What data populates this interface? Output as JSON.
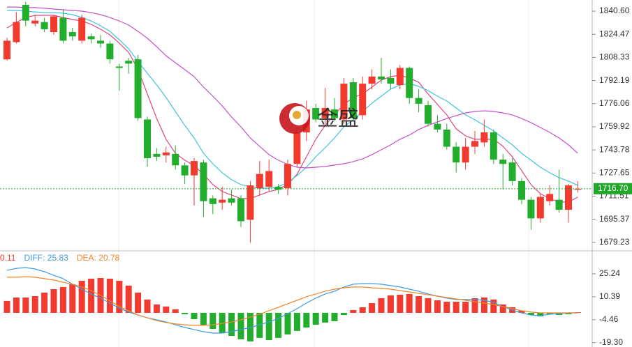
{
  "chart_data": [
    {
      "type": "candlestick",
      "watermark": "金盛",
      "up_color": "#f23a2f",
      "down_color": "#22ad2c",
      "ylim": [
        1674.3,
        1848.4
      ],
      "yticks": [
        {
          "value": 1840.6,
          "label": "1840.60"
        },
        1824.47,
        1808.33,
        1792.19,
        1776.06,
        1759.92,
        1743.78,
        1727.65,
        1711.51,
        1695.37,
        1679.23
      ],
      "current_price": {
        "value": 1716.7,
        "label": "1716.70"
      },
      "current_color": "#1fa82a",
      "open": [
        1807,
        1819,
        1845,
        1832,
        1833,
        1826,
        1836,
        1826,
        1820,
        1823,
        1820,
        1818,
        1802,
        1806,
        1807,
        1765,
        1741,
        1740,
        1741,
        1733,
        1726,
        1735,
        1710,
        1707,
        1710,
        1710,
        1695,
        1717,
        1718,
        1718,
        1717,
        1734,
        1756,
        1773,
        1766,
        1772,
        1765,
        1791,
        1768,
        1790,
        1795,
        1794,
        1789,
        1801,
        1780,
        1775,
        1762,
        1758,
        1746,
        1735,
        1746,
        1749,
        1756,
        1737,
        1735,
        1722,
        1709,
        1696,
        1708,
        1709,
        1702,
        1716
      ],
      "high": [
        1822,
        1840,
        1847,
        1838,
        1836,
        1838,
        1842,
        1829,
        1838,
        1825,
        1824,
        1820,
        1804,
        1808,
        1810,
        1767,
        1745,
        1746,
        1747,
        1735,
        1738,
        1737,
        1712,
        1718,
        1716,
        1712,
        1722,
        1736,
        1737,
        1720,
        1737,
        1760,
        1778,
        1776,
        1787,
        1780,
        1794,
        1794,
        1795,
        1800,
        1808,
        1800,
        1803,
        1802,
        1786,
        1778,
        1768,
        1762,
        1749,
        1752,
        1757,
        1765,
        1758,
        1741,
        1738,
        1724,
        1711,
        1713,
        1719,
        1730,
        1720,
        1722
      ],
      "low": [
        1806,
        1818,
        1830,
        1830,
        1826,
        1824,
        1818,
        1820,
        1818,
        1818,
        1815,
        1804,
        1785,
        1797,
        1764,
        1732,
        1736,
        1735,
        1730,
        1720,
        1705,
        1697,
        1699,
        1702,
        1705,
        1690,
        1679,
        1712,
        1715,
        1713,
        1712,
        1732,
        1750,
        1763,
        1762,
        1764,
        1762,
        1764,
        1765,
        1786,
        1790,
        1786,
        1786,
        1776,
        1770,
        1760,
        1756,
        1744,
        1728,
        1730,
        1741,
        1746,
        1734,
        1716,
        1719,
        1706,
        1688,
        1693,
        1705,
        1700,
        1693,
        1714
      ],
      "close": [
        1820,
        1833,
        1834,
        1834,
        1828,
        1837,
        1820,
        1823,
        1836,
        1821,
        1818,
        1807,
        1801,
        1804,
        1766,
        1738,
        1739,
        1742,
        1733,
        1726,
        1736,
        1708,
        1706,
        1709,
        1707,
        1694,
        1719,
        1727,
        1729,
        1716,
        1734,
        1756,
        1772,
        1765,
        1773,
        1766,
        1790,
        1766,
        1790,
        1795,
        1793,
        1790,
        1801,
        1780,
        1776,
        1762,
        1758,
        1746,
        1735,
        1746,
        1750,
        1756,
        1737,
        1734,
        1722,
        1709,
        1696,
        1711,
        1713,
        1702,
        1719,
        1716.7
      ],
      "series": [
        {
          "color": "#e2457c",
          "values": [
            1828.9,
            1832.8,
            1836.2,
            1837.7,
            1837.7,
            1837.7,
            1836.2,
            1834.8,
            1833.8,
            1831.4,
            1828.0,
            1824.1,
            1818.3,
            1811.9,
            1799.8,
            1782.8,
            1765.7,
            1751.2,
            1741.4,
            1736.6,
            1732.7,
            1726.8,
            1719.6,
            1714.7,
            1712.3,
            1709.8,
            1709.8,
            1712.3,
            1714.7,
            1716.2,
            1719.6,
            1726.8,
            1739.0,
            1751.2,
            1760.9,
            1768.2,
            1775.5,
            1780.3,
            1782.8,
            1787.6,
            1792.5,
            1794.9,
            1795.9,
            1793.9,
            1791.0,
            1782.8,
            1775.5,
            1768.2,
            1758.5,
            1753.6,
            1751.2,
            1751.2,
            1751.2,
            1746.3,
            1739.0,
            1729.3,
            1719.6,
            1713.2,
            1709.8,
            1707.4,
            1707.4,
            1710.8
          ]
        },
        {
          "color": "#3fc4de",
          "values": [
            1841.1,
            1841.1,
            1840.6,
            1840.1,
            1839.6,
            1839.6,
            1839.2,
            1838.2,
            1836.2,
            1833.8,
            1830.4,
            1826.5,
            1820.7,
            1814.4,
            1805.6,
            1797.3,
            1789.1,
            1780.3,
            1770.6,
            1760.9,
            1752.1,
            1741.4,
            1734.1,
            1727.8,
            1723.0,
            1719.6,
            1718.1,
            1717.1,
            1717.1,
            1718.1,
            1721.0,
            1725.9,
            1731.7,
            1739.0,
            1745.3,
            1752.1,
            1759.9,
            1764.8,
            1770.6,
            1776.4,
            1781.3,
            1786.2,
            1789.1,
            1790.1,
            1788.1,
            1785.2,
            1781.3,
            1777.9,
            1773.0,
            1768.2,
            1764.8,
            1760.9,
            1757.0,
            1752.1,
            1747.3,
            1741.4,
            1736.6,
            1731.7,
            1727.8,
            1724.4,
            1722.0,
            1719.1
          ]
        },
        {
          "color": "#c452c8",
          "values": [
            1843.5,
            1843.5,
            1843.1,
            1843.1,
            1842.6,
            1842.1,
            1841.6,
            1841.1,
            1840.6,
            1839.6,
            1838.2,
            1836.2,
            1833.8,
            1830.9,
            1826.5,
            1821.7,
            1815.8,
            1809.5,
            1804.6,
            1799.8,
            1794.9,
            1787.6,
            1781.3,
            1774.5,
            1766.7,
            1759.9,
            1752.1,
            1746.3,
            1740.5,
            1736.6,
            1733.7,
            1731.7,
            1731.2,
            1731.7,
            1732.2,
            1733.2,
            1734.1,
            1735.6,
            1737.5,
            1740.5,
            1743.9,
            1747.3,
            1751.2,
            1754.1,
            1758.0,
            1760.9,
            1763.3,
            1765.7,
            1767.7,
            1769.6,
            1770.6,
            1771.1,
            1770.6,
            1769.6,
            1768.2,
            1765.7,
            1762.8,
            1759.4,
            1756.0,
            1752.1,
            1747.3,
            1741.4
          ]
        }
      ]
    },
    {
      "type": "macd",
      "readout": [
        {
          "text": "0.11",
          "color": "#f23a2f"
        },
        {
          "text": "DIFF: 25.83",
          "color": "#3f9be0"
        },
        {
          "text": "DEA: 20.78",
          "color": "#f0862a"
        }
      ],
      "up_color": "#f23a2f",
      "down_color": "#22ad2c",
      "ylim": [
        -22.1,
        39.2
      ],
      "yticks": [
        25.24,
        10.39,
        -4.46,
        {
          "value": -19.3,
          "label": "-19.30"
        }
      ],
      "values": [
        7.7,
        9.9,
        9.9,
        10.8,
        13.1,
        15.3,
        16.7,
        18.5,
        20.7,
        22.1,
        22.5,
        22.1,
        20.7,
        17.6,
        13.1,
        8.6,
        5.4,
        4.1,
        2.3,
        -0.9,
        -4.1,
        -8.1,
        -10.4,
        -13.1,
        -14.9,
        -17.1,
        -18.5,
        -16.2,
        -17.6,
        -16.2,
        -14.0,
        -11.7,
        -9.5,
        -7.7,
        -6.3,
        -5.4,
        -1.4,
        1.8,
        3.6,
        6.3,
        9.5,
        11.3,
        11.7,
        12.2,
        10.8,
        9.5,
        8.1,
        7.2,
        7.2,
        7.2,
        9.5,
        9.9,
        8.6,
        5.4,
        3.6,
        1.4,
        -1.4,
        -2.3,
        -0.9,
        -1.4,
        -0.9,
        0.4
      ],
      "series": [
        {
          "color": "#3f9be0",
          "values": [
            27.5,
            28.8,
            29.3,
            28.4,
            26.6,
            24.3,
            22.1,
            18.5,
            15.3,
            12.2,
            9.5,
            6.3,
            3.2,
            0.5,
            -1.4,
            -3.2,
            -4.5,
            -5.9,
            -7.7,
            -9.5,
            -10.8,
            -12.2,
            -13.1,
            -13.1,
            -12.2,
            -10.8,
            -9.5,
            -7.7,
            -5.9,
            -3.6,
            -0.5,
            2.7,
            6.3,
            9.5,
            12.2,
            14.0,
            16.7,
            18.5,
            18.9,
            18.9,
            18.5,
            17.6,
            16.7,
            15.3,
            14.0,
            12.2,
            10.8,
            9.5,
            8.6,
            8.6,
            8.6,
            8.1,
            6.8,
            4.1,
            1.8,
            0,
            -1.4,
            -1.8,
            -0.9,
            -0.5,
            0,
            0
          ]
        },
        {
          "color": "#f0862a",
          "values": [
            23.0,
            23.0,
            23.4,
            23.0,
            22.1,
            21.2,
            19.8,
            18.5,
            16.7,
            14.4,
            11.3,
            7.7,
            4.1,
            1.4,
            -1.4,
            -3.2,
            -5.0,
            -6.3,
            -7.2,
            -7.7,
            -8.1,
            -8.1,
            -7.7,
            -6.8,
            -5.9,
            -4.5,
            -2.7,
            -0.9,
            1.4,
            3.6,
            5.9,
            8.1,
            10.4,
            12.2,
            14.0,
            15.3,
            16.2,
            16.7,
            16.7,
            16.2,
            15.8,
            15.3,
            14.4,
            13.5,
            12.6,
            11.7,
            10.8,
            9.9,
            9.0,
            8.1,
            7.2,
            6.3,
            5.4,
            4.1,
            2.7,
            1.4,
            0.5,
            0,
            0,
            0,
            0,
            0
          ]
        }
      ]
    }
  ]
}
